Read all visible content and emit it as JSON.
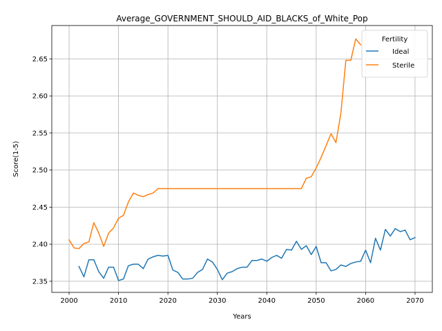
{
  "chart_data": {
    "type": "line",
    "title": "Average_GOVERNMENT_SHOULD_AID_BLACKS_of_White_Pop",
    "xlabel": "Years",
    "ylabel": "Score(1-5)",
    "xlim": [
      1996.5,
      2073.5
    ],
    "ylim": [
      2.335,
      2.695
    ],
    "xticks": [
      2000,
      2010,
      2020,
      2030,
      2040,
      2050,
      2060,
      2070
    ],
    "xtick_labels": [
      "2000",
      "2010",
      "2020",
      "2030",
      "2040",
      "2050",
      "2060",
      "2070"
    ],
    "yticks": [
      2.35,
      2.4,
      2.45,
      2.5,
      2.55,
      2.6,
      2.65
    ],
    "ytick_labels": [
      "2.35",
      "2.40",
      "2.45",
      "2.50",
      "2.55",
      "2.60",
      "2.65"
    ],
    "grid": true,
    "legend": {
      "title": "Fertility",
      "position": "top-right"
    },
    "series": [
      {
        "name": "Ideal",
        "color": "#1f77b4",
        "x": [
          2002,
          2003,
          2004,
          2005,
          2006,
          2007,
          2008,
          2009,
          2010,
          2011,
          2012,
          2013,
          2014,
          2015,
          2016,
          2017,
          2018,
          2019,
          2020,
          2021,
          2022,
          2023,
          2024,
          2025,
          2026,
          2027,
          2028,
          2029,
          2030,
          2031,
          2032,
          2033,
          2034,
          2035,
          2036,
          2037,
          2038,
          2039,
          2040,
          2041,
          2042,
          2043,
          2044,
          2045,
          2046,
          2047,
          2048,
          2049,
          2050,
          2051,
          2052,
          2053,
          2054,
          2055,
          2056,
          2057,
          2058,
          2059,
          2060,
          2061,
          2062,
          2063,
          2064,
          2065,
          2066,
          2067,
          2068,
          2069,
          2070
        ],
        "y": [
          2.37,
          2.356,
          2.379,
          2.379,
          2.363,
          2.354,
          2.369,
          2.369,
          2.351,
          2.353,
          2.371,
          2.373,
          2.373,
          2.367,
          2.38,
          2.383,
          2.385,
          2.384,
          2.385,
          2.365,
          2.362,
          2.353,
          2.353,
          2.354,
          2.362,
          2.366,
          2.38,
          2.376,
          2.366,
          2.352,
          2.361,
          2.363,
          2.367,
          2.369,
          2.369,
          2.378,
          2.378,
          2.38,
          2.377,
          2.382,
          2.385,
          2.381,
          2.393,
          2.392,
          2.404,
          2.393,
          2.398,
          2.386,
          2.397,
          2.375,
          2.375,
          2.364,
          2.366,
          2.372,
          2.37,
          2.374,
          2.376,
          2.377,
          2.392,
          2.375,
          2.408,
          2.392,
          2.42,
          2.411,
          2.421,
          2.417,
          2.419,
          2.406,
          2.409
        ]
      },
      {
        "name": "Sterile",
        "color": "#ff7f0e",
        "x": [
          2000,
          2001,
          2002,
          2003,
          2004,
          2005,
          2006,
          2007,
          2008,
          2009,
          2010,
          2011,
          2012,
          2013,
          2014,
          2015,
          2016,
          2017,
          2018,
          2019,
          2020,
          2021,
          2022,
          2023,
          2024,
          2025,
          2026,
          2027,
          2028,
          2029,
          2030,
          2031,
          2032,
          2033,
          2034,
          2035,
          2036,
          2037,
          2038,
          2039,
          2040,
          2041,
          2042,
          2043,
          2044,
          2045,
          2046,
          2047,
          2048,
          2049,
          2050,
          2051,
          2052,
          2053,
          2054,
          2055,
          2056,
          2057,
          2058,
          2059
        ],
        "y": [
          2.406,
          2.395,
          2.394,
          2.401,
          2.403,
          2.429,
          2.415,
          2.397,
          2.415,
          2.422,
          2.435,
          2.439,
          2.457,
          2.469,
          2.466,
          2.464,
          2.467,
          2.469,
          2.475,
          2.475,
          2.475,
          2.475,
          2.475,
          2.475,
          2.475,
          2.475,
          2.475,
          2.475,
          2.475,
          2.475,
          2.475,
          2.475,
          2.475,
          2.475,
          2.475,
          2.475,
          2.475,
          2.475,
          2.475,
          2.475,
          2.475,
          2.475,
          2.475,
          2.475,
          2.475,
          2.475,
          2.475,
          2.475,
          2.489,
          2.491,
          2.503,
          2.517,
          2.533,
          2.549,
          2.537,
          2.577,
          2.648,
          2.648,
          2.677,
          2.669
        ]
      }
    ]
  }
}
